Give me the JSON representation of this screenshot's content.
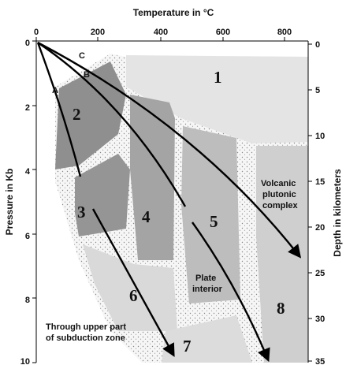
{
  "axes": {
    "top_title": "Temperature in °C",
    "left_title": "Pressure in Kb",
    "right_title": "Depth in kilometers",
    "top_ticks": [
      "0",
      "200",
      "400",
      "600",
      "800"
    ],
    "left_ticks": [
      "0",
      "2",
      "4",
      "6",
      "8",
      "10"
    ],
    "right_ticks": [
      "0",
      "5",
      "10",
      "15",
      "20",
      "25",
      "30",
      "35"
    ]
  },
  "zones": [
    "1",
    "2",
    "3",
    "4",
    "5",
    "6",
    "7",
    "8"
  ],
  "paths": [
    "A",
    "B",
    "C"
  ],
  "annotations": {
    "volcanic": [
      "Volcanic",
      "plutonic",
      "complex"
    ],
    "plate": [
      "Plate",
      "interior"
    ],
    "subduction": [
      "Through upper part",
      "of subduction zone"
    ]
  },
  "colors": {
    "zone_light": "#e2e2e2",
    "zone_mid": "#bdbdbd",
    "zone_dark": "#8e8e8e",
    "stipple": "#f4f4f4",
    "line": "#000000"
  }
}
